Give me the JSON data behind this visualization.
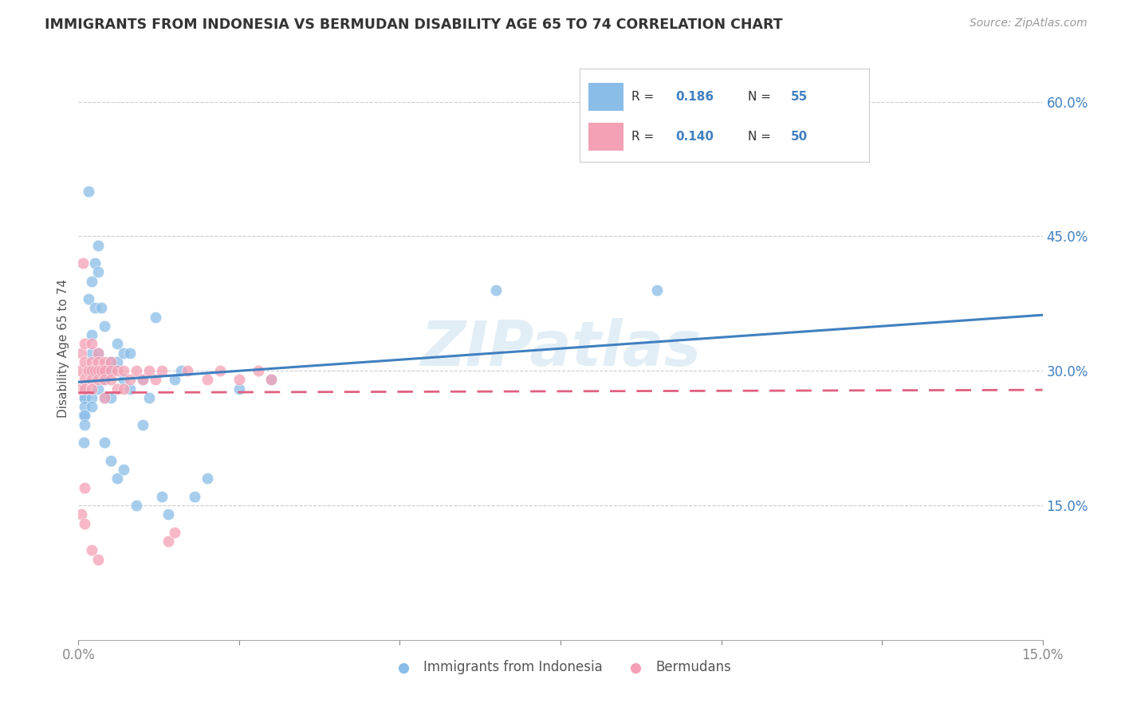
{
  "title": "IMMIGRANTS FROM INDONESIA VS BERMUDAN DISABILITY AGE 65 TO 74 CORRELATION CHART",
  "source": "Source: ZipAtlas.com",
  "ylabel": "Disability Age 65 to 74",
  "x_min": 0.0,
  "x_max": 0.15,
  "y_min": 0.0,
  "y_max": 0.65,
  "x_tick_positions": [
    0.0,
    0.025,
    0.05,
    0.075,
    0.1,
    0.125,
    0.15
  ],
  "x_tick_labels": [
    "0.0%",
    "",
    "",
    "",
    "",
    "",
    "15.0%"
  ],
  "y_tick_positions": [
    0.15,
    0.3,
    0.45,
    0.6
  ],
  "y_tick_labels": [
    "15.0%",
    "30.0%",
    "45.0%",
    "60.0%"
  ],
  "watermark": "ZIPatlas",
  "color_blue": "#8abde8",
  "color_pink": "#f4a0b5",
  "color_blue_line": "#4080c0",
  "color_pink_line": "#e06080",
  "color_blue_text": "#4080c0",
  "legend_label1": "Immigrants from Indonesia",
  "legend_label2": "Bermudans",
  "indonesia_x": [
    0.0008,
    0.0008,
    0.001,
    0.001,
    0.001,
    0.001,
    0.001,
    0.0015,
    0.0015,
    0.002,
    0.002,
    0.002,
    0.002,
    0.002,
    0.002,
    0.0025,
    0.0025,
    0.003,
    0.003,
    0.003,
    0.003,
    0.003,
    0.0035,
    0.004,
    0.004,
    0.004,
    0.004,
    0.004,
    0.005,
    0.005,
    0.005,
    0.005,
    0.006,
    0.006,
    0.006,
    0.007,
    0.007,
    0.007,
    0.008,
    0.008,
    0.009,
    0.01,
    0.01,
    0.011,
    0.012,
    0.013,
    0.014,
    0.015,
    0.016,
    0.018,
    0.02,
    0.025,
    0.03,
    0.065,
    0.09
  ],
  "indonesia_y": [
    0.25,
    0.22,
    0.27,
    0.27,
    0.26,
    0.25,
    0.24,
    0.38,
    0.5,
    0.4,
    0.34,
    0.32,
    0.3,
    0.27,
    0.26,
    0.42,
    0.37,
    0.44,
    0.41,
    0.32,
    0.3,
    0.28,
    0.37,
    0.35,
    0.3,
    0.29,
    0.27,
    0.22,
    0.31,
    0.3,
    0.27,
    0.2,
    0.33,
    0.31,
    0.18,
    0.32,
    0.29,
    0.19,
    0.32,
    0.28,
    0.15,
    0.29,
    0.24,
    0.27,
    0.36,
    0.16,
    0.14,
    0.29,
    0.3,
    0.16,
    0.18,
    0.28,
    0.29,
    0.39,
    0.39
  ],
  "bermuda_x": [
    0.0003,
    0.0003,
    0.0005,
    0.0005,
    0.0007,
    0.001,
    0.001,
    0.001,
    0.001,
    0.001,
    0.001,
    0.0015,
    0.002,
    0.002,
    0.002,
    0.002,
    0.002,
    0.002,
    0.0025,
    0.003,
    0.003,
    0.003,
    0.003,
    0.003,
    0.0035,
    0.004,
    0.004,
    0.004,
    0.004,
    0.005,
    0.005,
    0.005,
    0.006,
    0.006,
    0.007,
    0.007,
    0.008,
    0.009,
    0.01,
    0.011,
    0.012,
    0.013,
    0.014,
    0.015,
    0.017,
    0.02,
    0.022,
    0.025,
    0.028,
    0.03
  ],
  "bermuda_y": [
    0.3,
    0.28,
    0.32,
    0.14,
    0.42,
    0.33,
    0.31,
    0.29,
    0.28,
    0.17,
    0.13,
    0.3,
    0.33,
    0.31,
    0.3,
    0.29,
    0.28,
    0.1,
    0.3,
    0.32,
    0.31,
    0.3,
    0.29,
    0.09,
    0.3,
    0.31,
    0.3,
    0.29,
    0.27,
    0.31,
    0.3,
    0.29,
    0.3,
    0.28,
    0.3,
    0.28,
    0.29,
    0.3,
    0.29,
    0.3,
    0.29,
    0.3,
    0.11,
    0.12,
    0.3,
    0.29,
    0.3,
    0.29,
    0.3,
    0.29
  ]
}
